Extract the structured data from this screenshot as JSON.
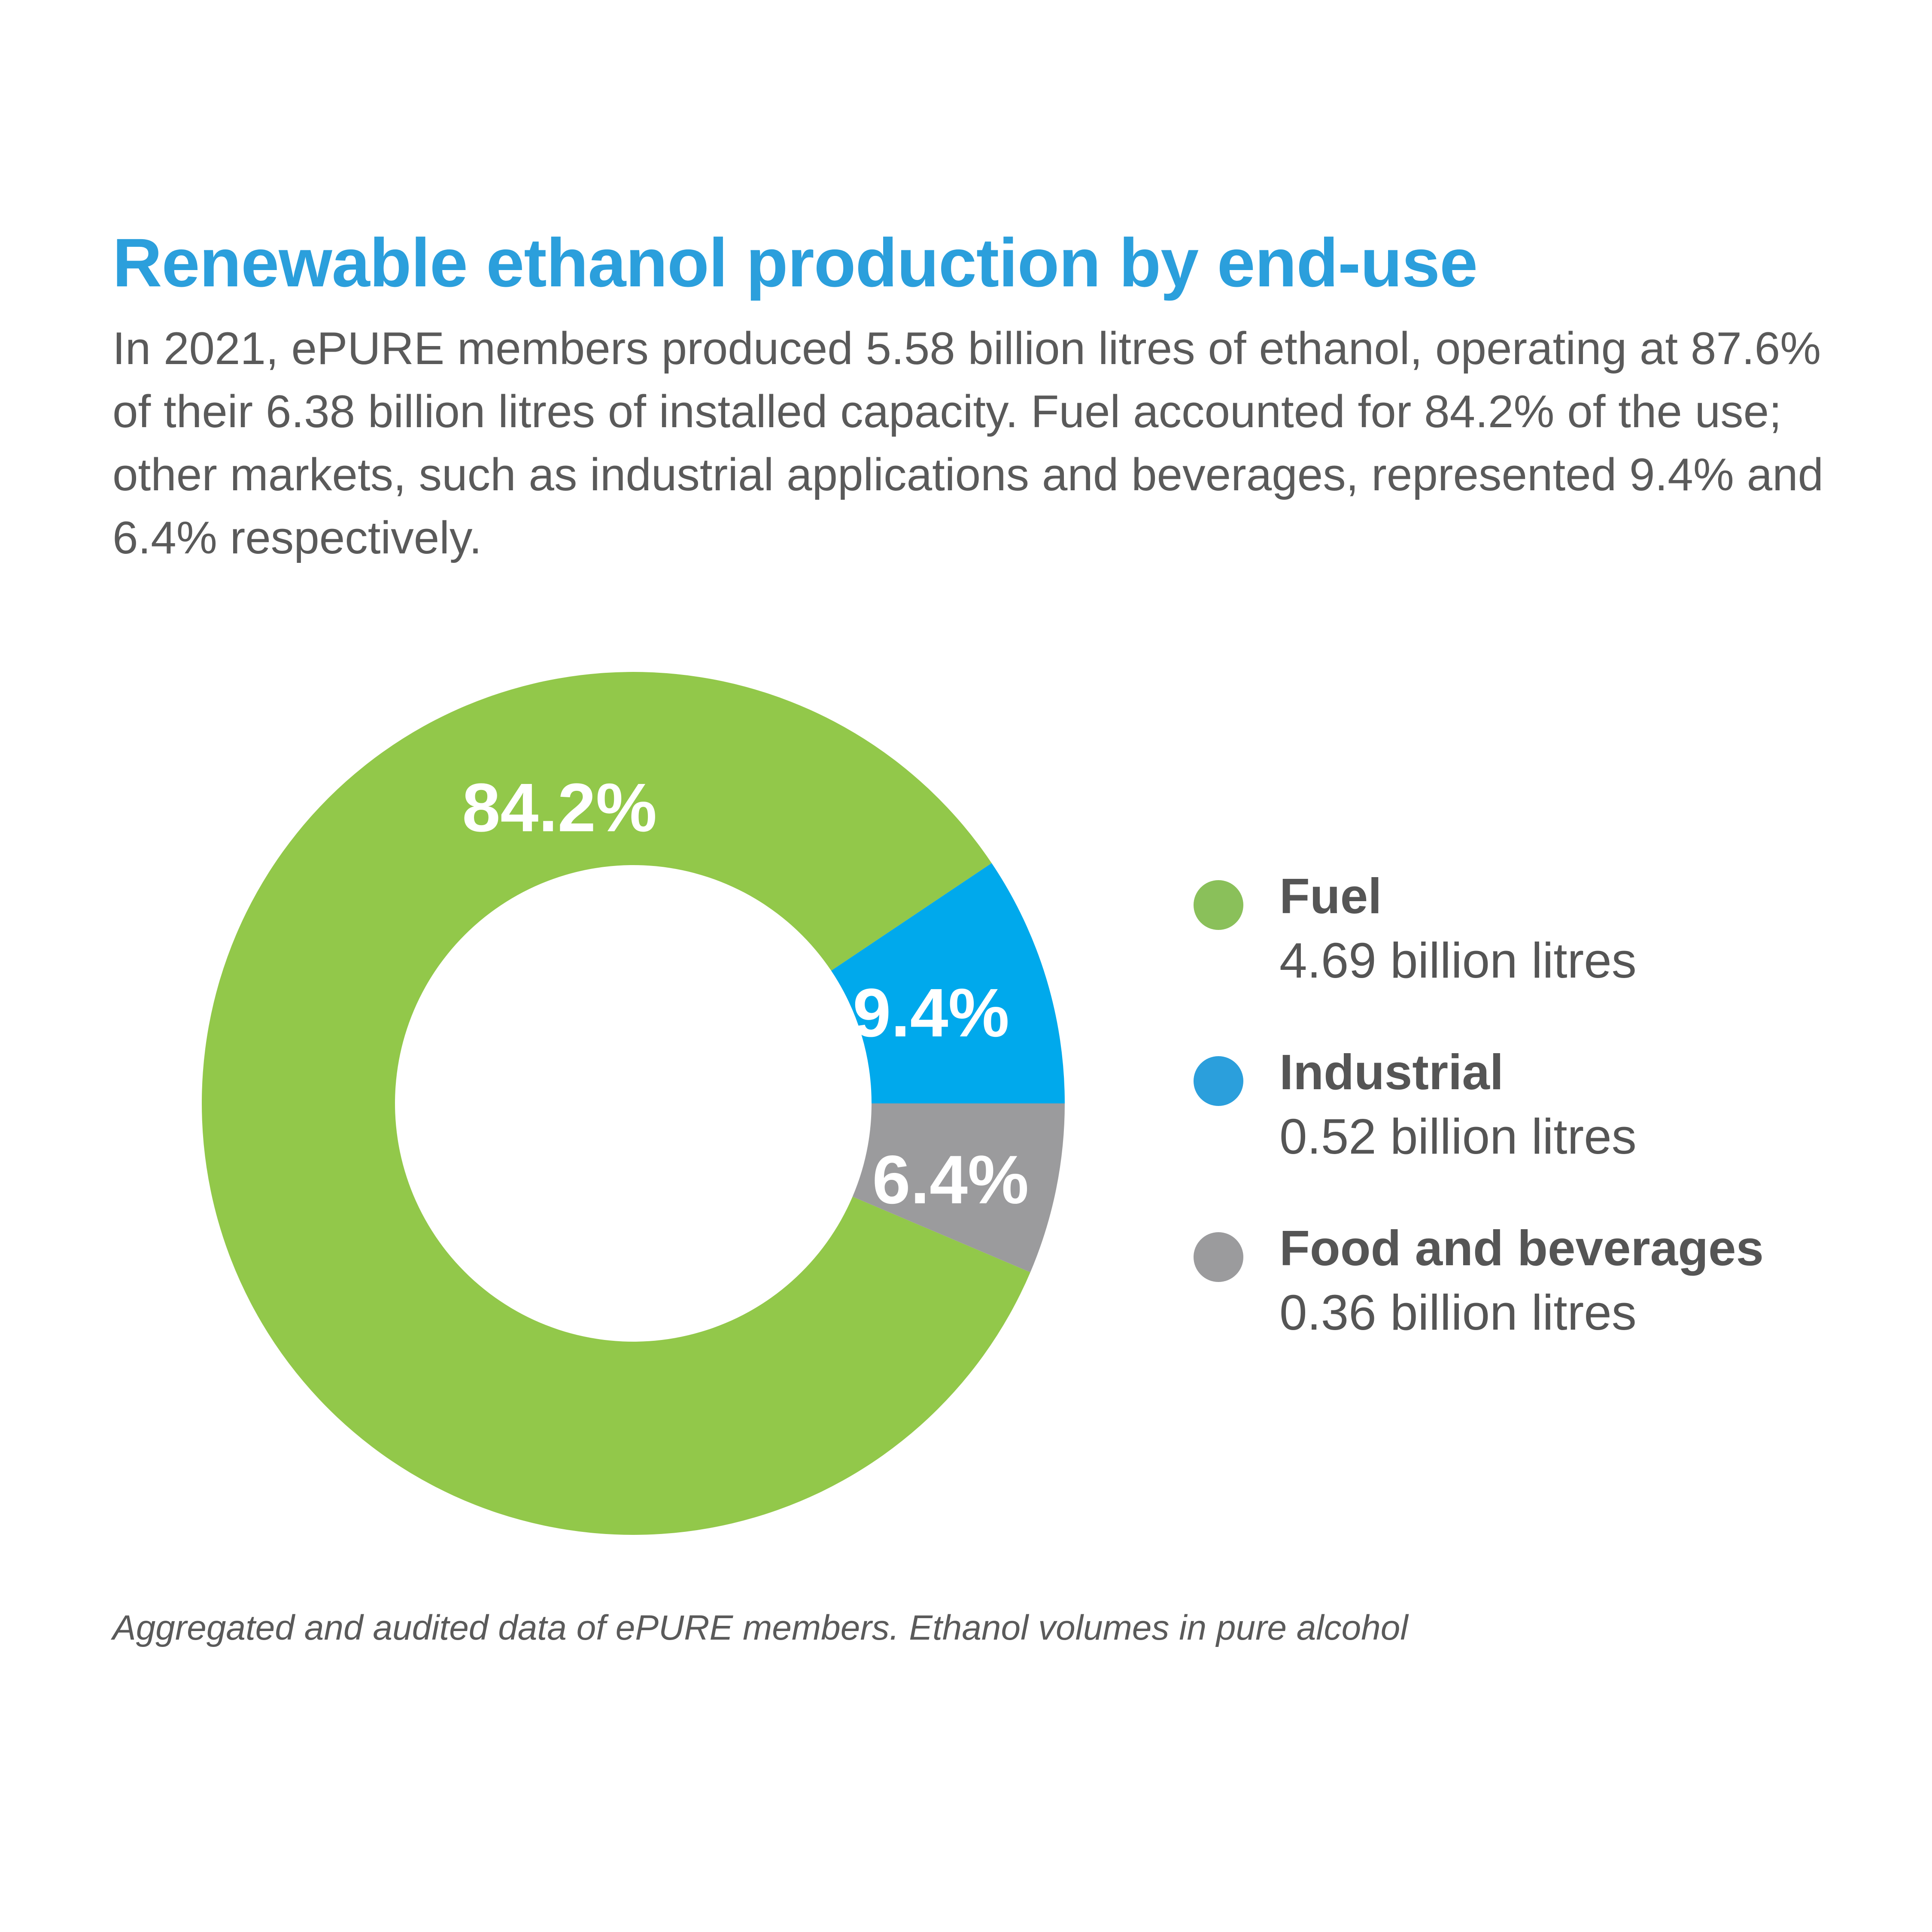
{
  "chart_data": {
    "type": "pie",
    "title": "Renewable ethanol production by end-use",
    "subtitle": "In 2021, ePURE members produced 5.58 billion litres of ethanol, operating at 87.6% of their 6.38 billion litres of installed capacity. Fuel accounted for 84.2% of the use; other markets, such as industrial applications and beverages, represented 9.4% and 6.4% respectively.",
    "donut": true,
    "legend_position": "right",
    "slices": [
      {
        "name": "Fuel",
        "value": 84.2,
        "label": "84.2%",
        "volume": "4.69 billion litres",
        "color": "#92c84a"
      },
      {
        "name": "Industrial",
        "value": 9.4,
        "label": "9.4%",
        "volume": "0.52 billion litres",
        "color": "#00a9ec"
      },
      {
        "name": "Food and beverages",
        "value": 6.4,
        "label": "6.4%",
        "volume": "0.36 billion litres",
        "color": "#9b9b9d"
      }
    ],
    "legend_colors": [
      "#8ac05a",
      "#2b9fdc",
      "#9b9b9d"
    ]
  },
  "footnote": "Aggregated and audited data of ePURE members. Ethanol volumes in pure alcohol"
}
